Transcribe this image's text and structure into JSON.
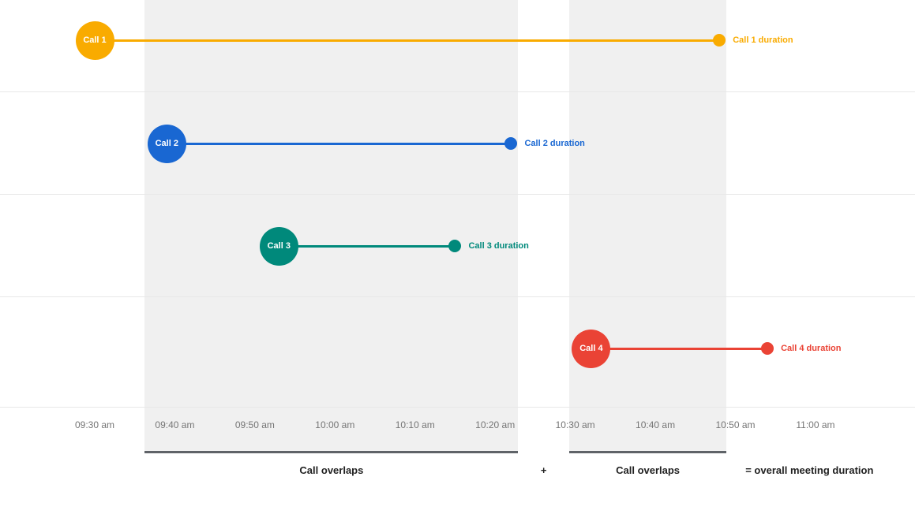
{
  "chart_data": {
    "type": "timeline",
    "x_axis": {
      "tick_labels": [
        "09:30 am",
        "09:40 am",
        "09:50 am",
        "10:00 am",
        "10:10 am",
        "10:20 am",
        "10:30 am",
        "10:40 am",
        "10:50 am",
        "11:00 am"
      ]
    },
    "calls": [
      {
        "name": "Call 1",
        "start": "09:30 am",
        "end": "10:48 am",
        "duration_label": "Call 1 duration",
        "color": "#F9AB00"
      },
      {
        "name": "Call 2",
        "start": "09:39 am",
        "end": "10:22 am",
        "duration_label": "Call 2 duration",
        "color": "#1967D2"
      },
      {
        "name": "Call 3",
        "start": "09:53 am",
        "end": "10:15 am",
        "duration_label": "Call 3 duration",
        "color": "#00897B"
      },
      {
        "name": "Call 4",
        "start": "10:32 am",
        "end": "10:54 am",
        "duration_label": "Call 4 duration",
        "color": "#EA4335"
      }
    ],
    "overlaps": [
      {
        "label": "Call overlaps",
        "start": "09:39 am",
        "end": "10:22 am"
      },
      {
        "label": "Call overlaps",
        "start": "10:32 am",
        "end": "10:48 am"
      }
    ],
    "footer": {
      "plus": "+",
      "equals_label": "= overall meeting duration"
    },
    "colors": {
      "band": "#F0F0F0",
      "gridline": "#E8E8E8",
      "axis_text": "#757575",
      "footer_text": "#212121",
      "underline": "#5F6368"
    }
  }
}
